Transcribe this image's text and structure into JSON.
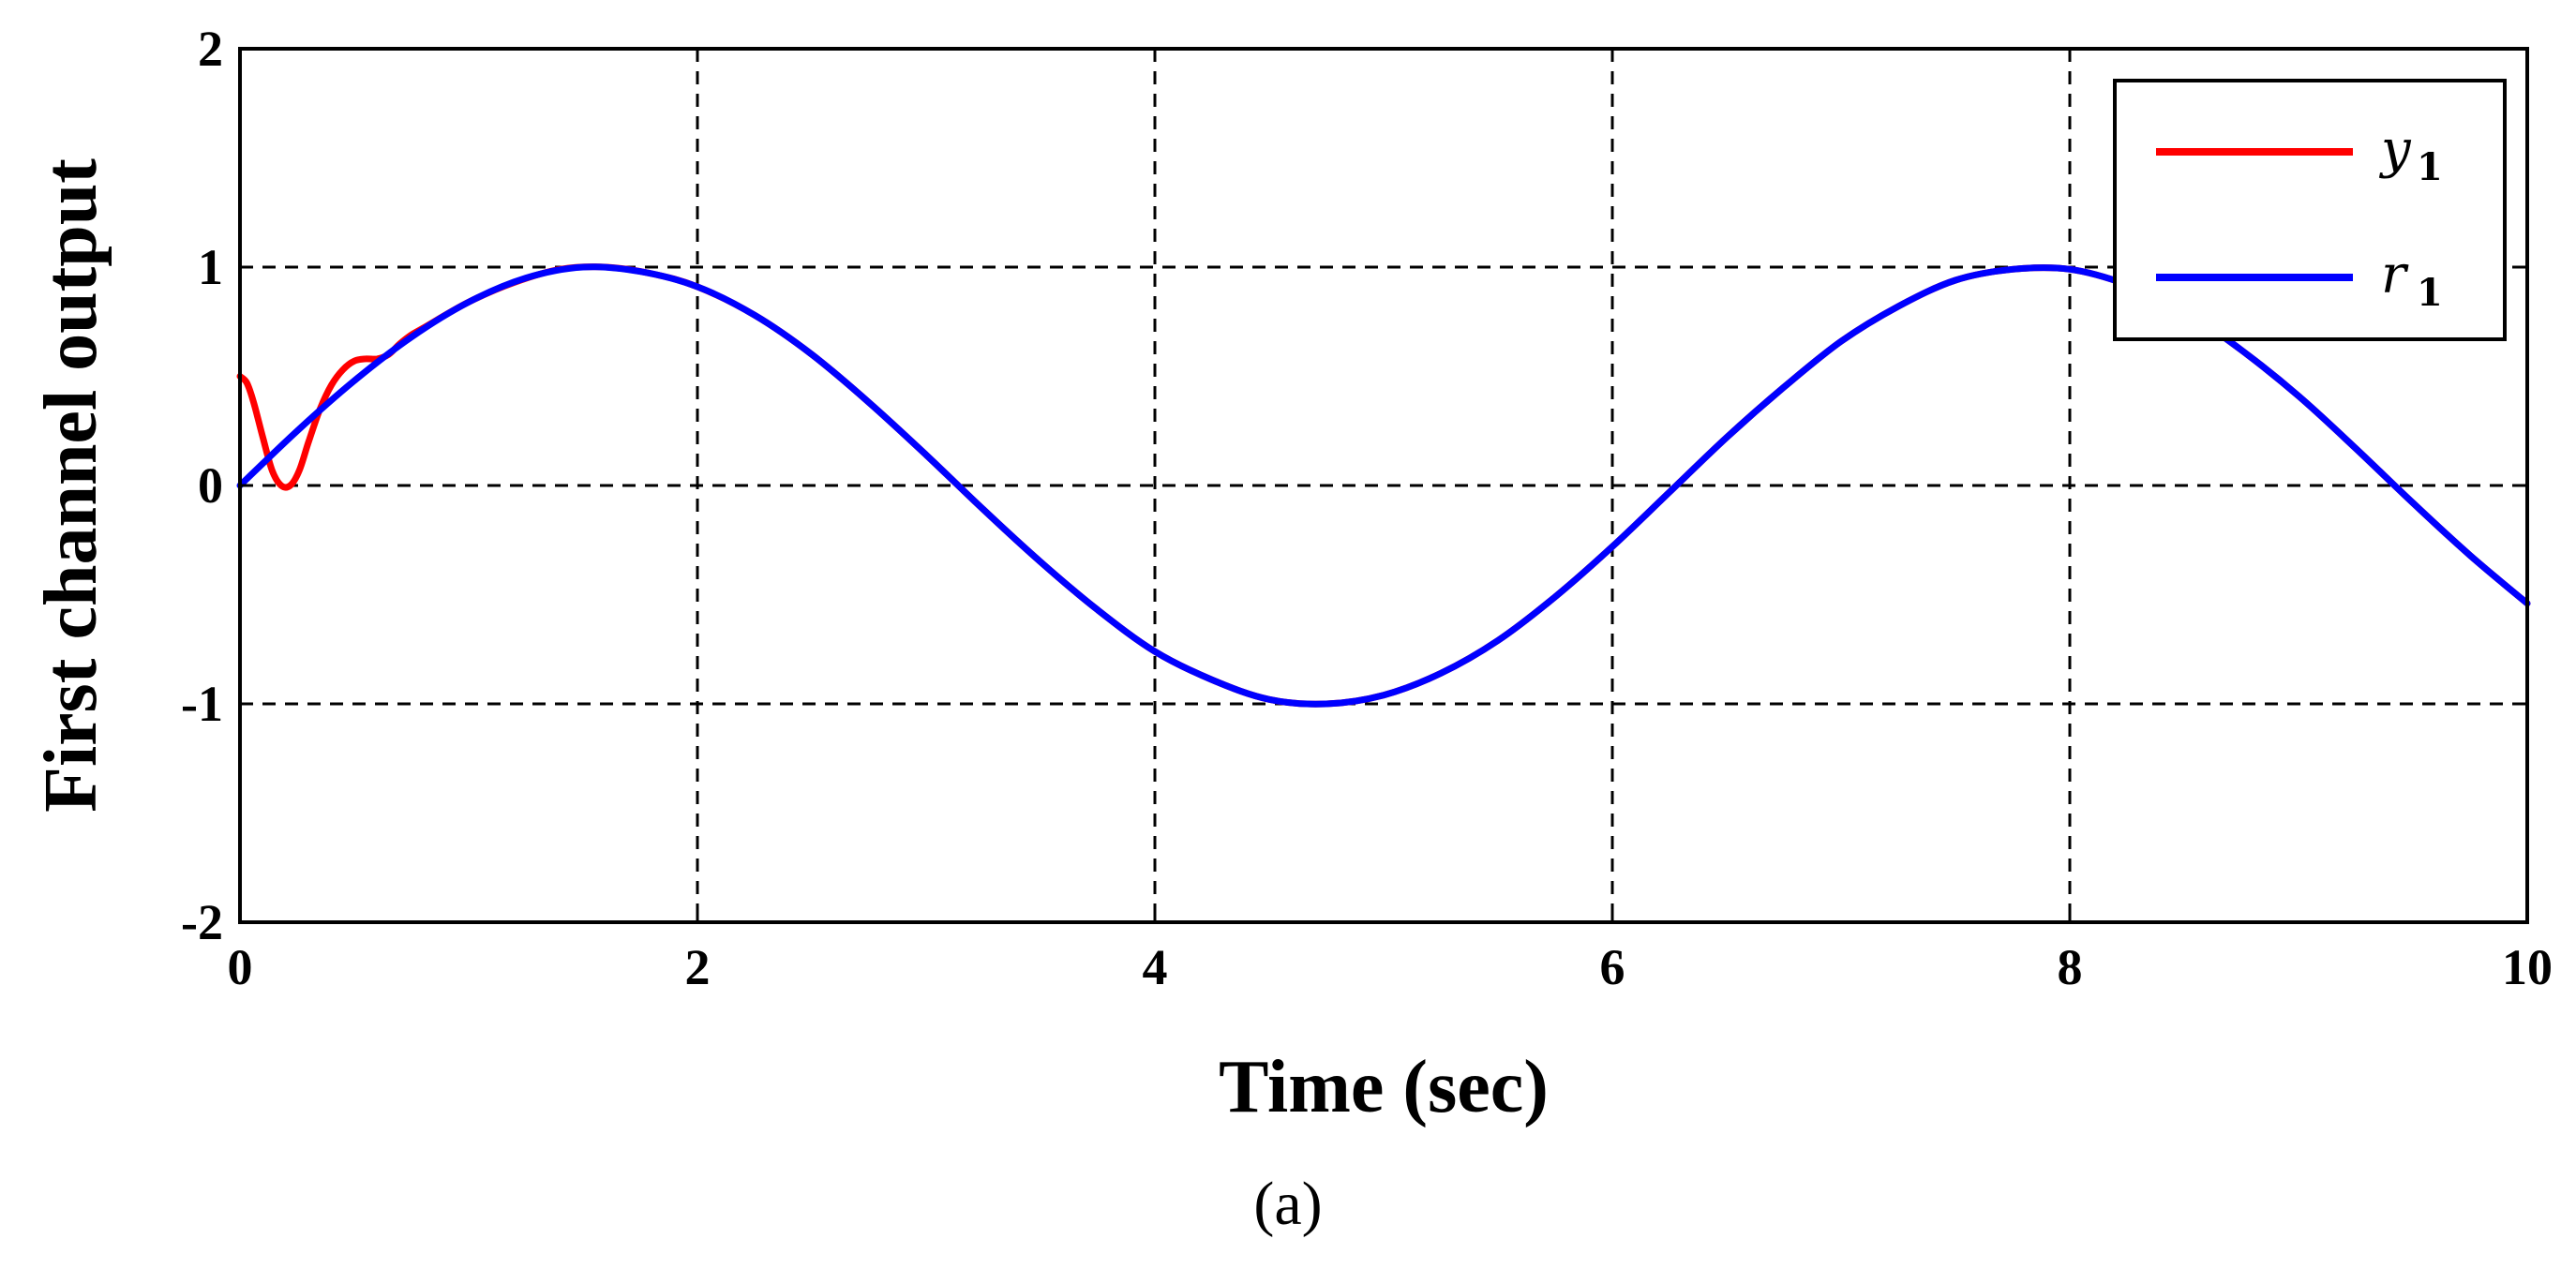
{
  "chart_data": {
    "type": "line",
    "title": "",
    "xlabel": "Time (sec)",
    "ylabel": "First channel output",
    "caption": "(a)",
    "xlim": [
      0,
      10
    ],
    "ylim": [
      -2,
      2
    ],
    "xticks": [
      0,
      2,
      4,
      6,
      8,
      10
    ],
    "yticks": [
      -2,
      -1,
      0,
      1,
      2
    ],
    "xtick_labels": [
      "0",
      "2",
      "4",
      "6",
      "8",
      "10"
    ],
    "ytick_labels": [
      "-2",
      "-1",
      "0",
      "1",
      "2"
    ],
    "grid": true,
    "legend_position": "top-right",
    "series": [
      {
        "name": "y",
        "name_subscript": "1",
        "color": "#ff0000",
        "x": [
          0,
          0.03,
          0.06,
          0.1,
          0.14,
          0.18,
          0.22,
          0.26,
          0.3,
          0.35,
          0.4,
          0.45,
          0.5,
          0.55,
          0.6,
          0.65,
          0.7,
          0.75,
          0.8,
          1.0,
          1.2,
          1.4,
          1.6,
          1.8,
          2.0,
          2.25,
          2.5,
          2.75,
          3.0,
          3.25,
          3.5,
          3.75,
          4.0,
          4.25,
          4.5,
          4.75,
          5.0,
          5.25,
          5.5,
          5.75,
          6.0,
          6.25,
          6.5,
          6.75,
          7.0,
          7.25,
          7.5,
          7.75,
          8.0,
          8.25,
          8.5,
          8.75,
          9.0,
          9.25,
          9.5,
          9.75,
          10.0
        ],
        "y": [
          0.5,
          0.47,
          0.38,
          0.22,
          0.07,
          0.0,
          0.0,
          0.07,
          0.2,
          0.35,
          0.46,
          0.53,
          0.57,
          0.58,
          0.58,
          0.6,
          0.65,
          0.69,
          0.72,
          0.84,
          0.93,
          0.99,
          1.0,
          0.97,
          0.91,
          0.78,
          0.6,
          0.38,
          0.14,
          -0.11,
          -0.35,
          -0.57,
          -0.76,
          -0.89,
          -0.98,
          -1.0,
          -0.96,
          -0.86,
          -0.71,
          -0.51,
          -0.28,
          -0.03,
          0.22,
          0.45,
          0.66,
          0.82,
          0.94,
          0.99,
          0.99,
          0.92,
          0.8,
          0.62,
          0.41,
          0.17,
          -0.08,
          -0.32,
          -0.54
        ]
      },
      {
        "name": "r",
        "name_subscript": "1",
        "color": "#0000ff",
        "x": [
          0,
          0.25,
          0.5,
          0.75,
          1.0,
          1.25,
          1.5,
          1.75,
          2.0,
          2.25,
          2.5,
          2.75,
          3.0,
          3.25,
          3.5,
          3.75,
          4.0,
          4.25,
          4.5,
          4.75,
          5.0,
          5.25,
          5.5,
          5.75,
          6.0,
          6.25,
          6.5,
          6.75,
          7.0,
          7.25,
          7.5,
          7.75,
          8.0,
          8.25,
          8.5,
          8.75,
          9.0,
          9.25,
          9.5,
          9.75,
          10.0
        ],
        "y": [
          0.0,
          0.25,
          0.48,
          0.68,
          0.84,
          0.95,
          1.0,
          0.98,
          0.91,
          0.78,
          0.6,
          0.38,
          0.14,
          -0.11,
          -0.35,
          -0.57,
          -0.76,
          -0.89,
          -0.98,
          -1.0,
          -0.96,
          -0.86,
          -0.71,
          -0.51,
          -0.28,
          -0.03,
          0.22,
          0.45,
          0.66,
          0.82,
          0.94,
          0.99,
          0.99,
          0.92,
          0.8,
          0.62,
          0.41,
          0.17,
          -0.08,
          -0.32,
          -0.54
        ]
      }
    ]
  }
}
